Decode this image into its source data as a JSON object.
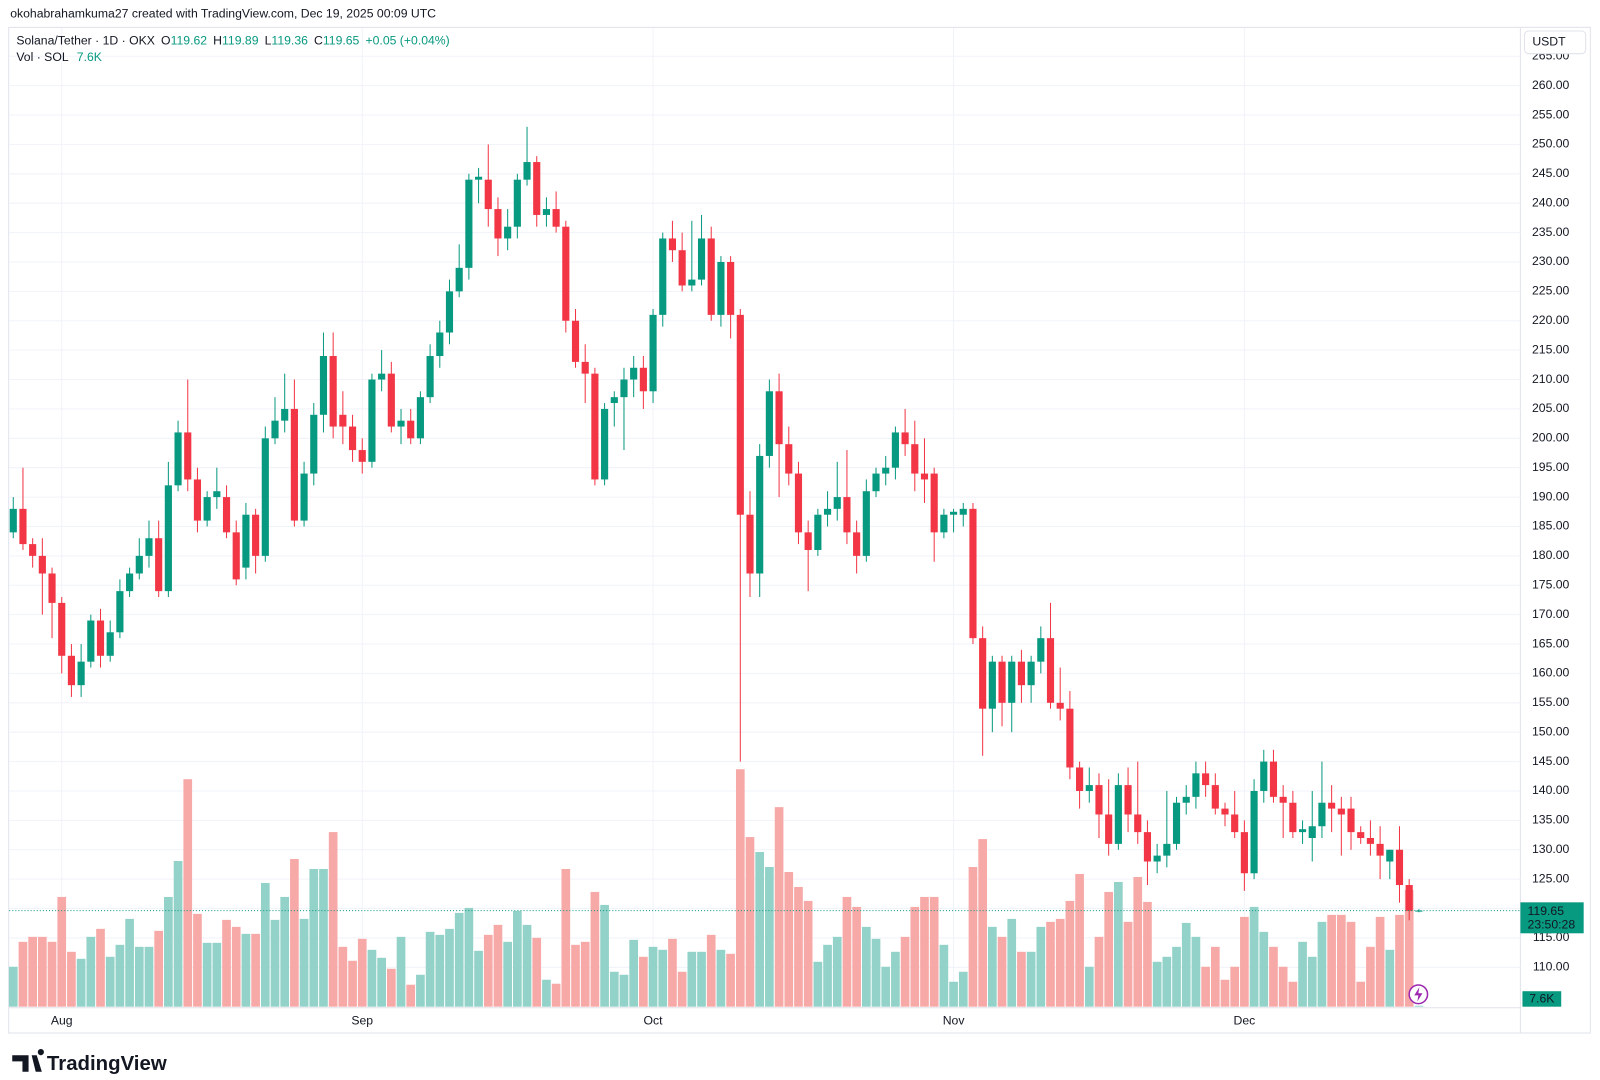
{
  "header": "okohabrahamkuma27 created with TradingView.com, Dec 19, 2025 00:09 UTC",
  "brand": "TradingView",
  "chart_data": {
    "type": "candlestick",
    "currency": "USDT",
    "ohlc_labels": [
      "O",
      "H",
      "L",
      "C"
    ],
    "change": "+0.05 (+0.04%)",
    "volume_label": "7.6K",
    "countdown": "23:50:28",
    "categories": [
      null,
      null,
      null,
      null,
      null,
      "Aug",
      null,
      null,
      null,
      null,
      null,
      null,
      null,
      null,
      null,
      null,
      null,
      null,
      null,
      null,
      null,
      null,
      null,
      null,
      null,
      null,
      null,
      null,
      null,
      null,
      null,
      null,
      null,
      null,
      null,
      null,
      "Sep",
      null,
      null,
      null,
      null,
      null,
      null,
      null,
      null,
      null,
      null,
      null,
      null,
      null,
      null,
      null,
      null,
      null,
      null,
      null,
      null,
      null,
      null,
      null,
      null,
      null,
      null,
      null,
      null,
      null,
      "Oct",
      null,
      null,
      null,
      null,
      null,
      null,
      null,
      null,
      null,
      null,
      null,
      null,
      null,
      null,
      null,
      null,
      null,
      null,
      null,
      null,
      null,
      null,
      null,
      null,
      null,
      null,
      null,
      null,
      null,
      null,
      "Nov",
      null,
      null,
      null,
      null,
      null,
      null,
      null,
      null,
      null,
      null,
      null,
      null,
      null,
      null,
      null,
      null,
      null,
      null,
      null,
      null,
      null,
      null,
      null,
      null,
      null,
      null,
      null,
      null,
      null,
      "Dec",
      null,
      null,
      null,
      null,
      null,
      null,
      null,
      null,
      null,
      null,
      null,
      null,
      null,
      null,
      null,
      null,
      null,
      null
    ],
    "series": [
      {
        "name": "Solana/Tether · 1D · OKX",
        "up_color": "#089981",
        "down_color": "#f23645",
        "open": [
          184,
          188,
          182,
          180,
          177,
          172,
          163,
          158,
          162,
          169,
          163,
          167,
          174,
          177,
          180,
          183,
          174,
          192,
          201,
          193,
          186,
          190,
          190,
          184,
          178,
          187,
          180,
          200,
          203,
          205,
          186,
          194,
          204,
          214,
          204,
          202,
          198,
          196,
          210,
          211,
          202,
          203,
          200,
          207,
          214,
          218,
          225,
          229,
          244,
          244,
          239,
          234,
          236,
          244,
          247,
          238,
          239,
          236,
          220,
          213,
          211,
          193,
          206,
          207,
          210,
          212,
          208,
          221,
          234,
          232,
          226,
          227,
          234,
          221,
          230,
          221,
          187,
          177,
          197,
          208,
          199,
          194,
          184,
          181,
          187,
          188,
          190,
          184,
          180,
          191,
          194,
          195,
          201,
          199,
          194,
          194,
          184,
          187,
          187,
          188,
          166,
          154,
          162,
          155,
          162,
          158,
          162,
          166,
          155,
          154,
          144,
          140,
          141,
          136,
          131,
          141,
          136,
          133,
          128,
          129,
          131,
          138,
          139,
          143,
          141,
          137,
          136,
          133,
          126,
          140,
          145,
          139,
          138,
          133,
          132,
          134,
          138,
          137,
          137,
          133,
          132,
          131,
          128,
          130,
          124,
          119.62
        ],
        "close": [
          188,
          182,
          180,
          177,
          172,
          163,
          158,
          162,
          169,
          163,
          167,
          174,
          177,
          180,
          183,
          174,
          192,
          201,
          193,
          186,
          190,
          191,
          184,
          176,
          187,
          180,
          200,
          203,
          205,
          186,
          194,
          204,
          214,
          202,
          202,
          198,
          196,
          210,
          211,
          202,
          203,
          200,
          207,
          214,
          218,
          225,
          229,
          244,
          244.5,
          239,
          234,
          236,
          244,
          247,
          238,
          239,
          236,
          220,
          213,
          211,
          193,
          205,
          207,
          210,
          212,
          208,
          221,
          234,
          232,
          226,
          227,
          234,
          221,
          230,
          221,
          187,
          177,
          197,
          208,
          199,
          194,
          184,
          181,
          187,
          188,
          190,
          184,
          180,
          191,
          194,
          195,
          201,
          199,
          194,
          193,
          184,
          187,
          187.5,
          188,
          166,
          154,
          162,
          155,
          162,
          158,
          162,
          166,
          155,
          154,
          144,
          140,
          141,
          136,
          131,
          141,
          136,
          133,
          128,
          129,
          131,
          138,
          139,
          143,
          141,
          137,
          136,
          133,
          126,
          140,
          145,
          139,
          138,
          133,
          133.5,
          134,
          138,
          137,
          136,
          133,
          132,
          131,
          129,
          130,
          124,
          119.6,
          119.65
        ],
        "high": [
          190,
          195,
          183,
          183,
          178,
          173,
          165,
          165,
          170,
          171,
          169,
          176,
          178,
          183,
          186,
          186,
          196,
          203,
          210,
          195,
          191,
          195,
          192,
          186,
          189,
          188,
          202,
          207,
          211,
          210,
          196,
          206,
          218,
          218,
          208,
          204,
          200,
          211,
          215,
          213,
          205,
          205,
          208,
          216,
          220,
          227,
          233,
          245,
          246,
          250,
          241,
          239,
          245,
          253,
          248,
          241,
          242,
          237,
          222,
          216,
          212,
          206,
          208,
          212,
          214,
          214,
          222,
          235,
          237,
          235,
          237,
          238,
          236,
          231,
          231,
          222,
          191,
          199,
          210,
          211,
          202,
          196,
          186,
          188,
          191,
          196,
          198,
          186,
          193,
          195,
          197,
          202,
          205,
          203,
          200,
          195,
          188,
          188,
          189,
          189,
          168,
          163,
          163,
          163,
          164,
          163,
          168,
          172,
          161,
          157,
          145,
          144,
          143,
          142,
          143,
          144,
          145,
          135,
          131,
          140,
          139,
          141,
          145,
          145,
          143,
          138,
          140,
          135,
          142,
          147,
          147,
          141,
          140,
          135,
          140,
          145,
          141,
          139,
          139,
          134,
          135,
          134,
          130,
          134,
          125,
          119.89
        ],
        "low": [
          183,
          181,
          178,
          170,
          166,
          160,
          156,
          156,
          161,
          161,
          162,
          166,
          173,
          176,
          178,
          173,
          173,
          191,
          191,
          184,
          185,
          188,
          183,
          175,
          176,
          177,
          179,
          199,
          201,
          185,
          185,
          192,
          201,
          200,
          199,
          196,
          194,
          195,
          208,
          201,
          199,
          199,
          199,
          206,
          212,
          216,
          224,
          227,
          240,
          236,
          231,
          232,
          234,
          243,
          236,
          236,
          235,
          218,
          212,
          206,
          192,
          192,
          202,
          198,
          207,
          205,
          206,
          219,
          230,
          225,
          225,
          226,
          220,
          219,
          217,
          145,
          173,
          173,
          195,
          190,
          192,
          182,
          174,
          180,
          185,
          186,
          182,
          177,
          179,
          190,
          192,
          193,
          197,
          191,
          189,
          179,
          183,
          184,
          185,
          165,
          146,
          150,
          151,
          150,
          155,
          155,
          160,
          154,
          152,
          142,
          137,
          138,
          132,
          129,
          130,
          133,
          131,
          124,
          126,
          127,
          130,
          136,
          137,
          139,
          136,
          134,
          132,
          123,
          125,
          138,
          138,
          132,
          132,
          131,
          128,
          132,
          133,
          129,
          130,
          131,
          129,
          125,
          125,
          121,
          118,
          119.36
        ]
      },
      {
        "name": "Vol · SOL",
        "up_color": "#92d2c8",
        "down_color": "#f7a9a7",
        "values": [
          320,
          520,
          560,
          560,
          520,
          880,
          440,
          384,
          560,
          624,
          400,
          496,
          704,
          480,
          480,
          608,
          880,
          1168,
          1824,
          744,
          512,
          512,
          696,
          640,
          584,
          584,
          992,
          696,
          880,
          1184,
          704,
          1104,
          1104,
          1400,
          480,
          368,
          544,
          456,
          392,
          304,
          560,
          176,
          256,
          600,
          576,
          624,
          752,
          792,
          448,
          576,
          656,
          520,
          768,
          656,
          552,
          216,
          184,
          1104,
          496,
          520,
          920,
          816,
          280,
          256,
          536,
          400,
          480,
          456,
          544,
          280,
          440,
          440,
          576,
          456,
          424,
          1904,
          1360,
          1240,
          1120,
          1600,
          1080,
          960,
          848,
          360,
          496,
          560,
          880,
          800,
          640,
          544,
          320,
          440,
          560,
          800,
          880,
          880,
          496,
          200,
          280,
          1120,
          1344,
          640,
          560,
          704,
          440,
          440,
          640,
          680,
          704,
          848,
          1064,
          320,
          560,
          920,
          1000,
          680,
          1040,
          840,
          360,
          400,
          480,
          672,
          560,
          320,
          480,
          216,
          320,
          720,
          800,
          600,
          480,
          320,
          200,
          520,
          400,
          680,
          736,
          736,
          680,
          200,
          480,
          720,
          456,
          736,
          936,
          7.6
        ]
      }
    ],
    "ylim": [
      103.3,
      269.3
    ],
    "yticks": [
      {
        "value": 110,
        "label": "110.00"
      },
      {
        "value": 115,
        "label": "115.00"
      },
      {
        "value": 120,
        "label": "120.00"
      },
      {
        "value": 125,
        "label": "125.00"
      },
      {
        "value": 130,
        "label": "130.00"
      },
      {
        "value": 135,
        "label": "135.00"
      },
      {
        "value": 140,
        "label": "140.00"
      },
      {
        "value": 145,
        "label": "145.00"
      },
      {
        "value": 150,
        "label": "150.00"
      },
      {
        "value": 155,
        "label": "155.00"
      },
      {
        "value": 160,
        "label": "160.00"
      },
      {
        "value": 165,
        "label": "165.00"
      },
      {
        "value": 170,
        "label": "170.00"
      },
      {
        "value": 175,
        "label": "175.00"
      },
      {
        "value": 180,
        "label": "180.00"
      },
      {
        "value": 185,
        "label": "185.00"
      },
      {
        "value": 190,
        "label": "190.00"
      },
      {
        "value": 195,
        "label": "195.00"
      },
      {
        "value": 200,
        "label": "200.00"
      },
      {
        "value": 205,
        "label": "205.00"
      },
      {
        "value": 210,
        "label": "210.00"
      },
      {
        "value": 215,
        "label": "215.00"
      },
      {
        "value": 220,
        "label": "220.00"
      },
      {
        "value": 225,
        "label": "225.00"
      },
      {
        "value": 230,
        "label": "230.00"
      },
      {
        "value": 235,
        "label": "235.00"
      },
      {
        "value": 240,
        "label": "240.00"
      },
      {
        "value": 245,
        "label": "245.00"
      },
      {
        "value": 250,
        "label": "250.00"
      },
      {
        "value": 255,
        "label": "255.00"
      },
      {
        "value": 260,
        "label": "260.00"
      },
      {
        "value": 265,
        "label": "265.00"
      }
    ],
    "grid": true
  }
}
